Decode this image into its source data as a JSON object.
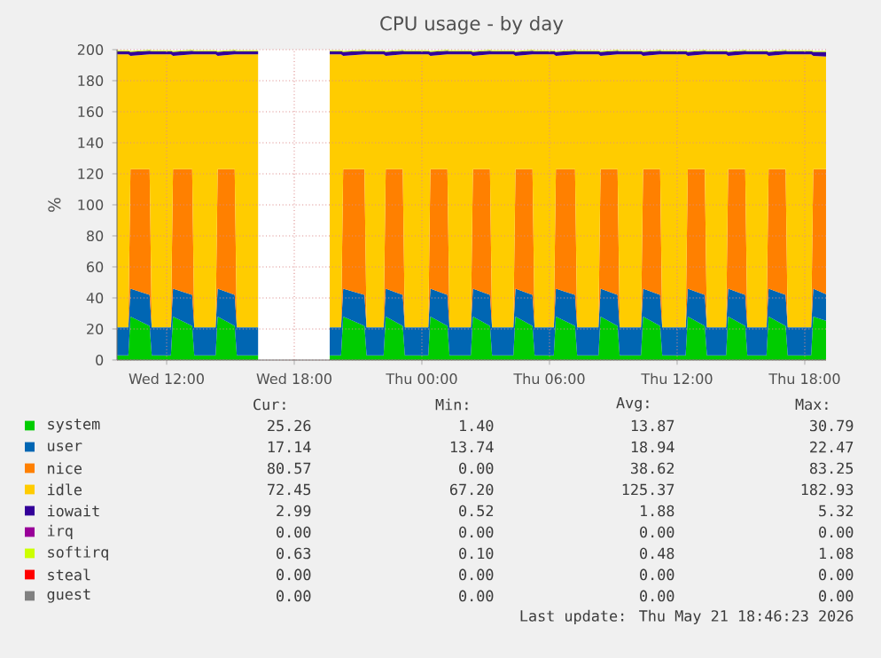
{
  "chart_data": {
    "type": "area",
    "stacked": true,
    "title": "CPU usage - by day",
    "ylabel": "%",
    "x": [
      "2026-05-20T09:40",
      "2026-05-20T10:12",
      "2026-05-20T10:18",
      "2026-05-20T11:12",
      "2026-05-20T11:18",
      "2026-05-20T12:12",
      "2026-05-20T12:18",
      "2026-05-20T13:12",
      "2026-05-20T13:18",
      "2026-05-20T14:18",
      "2026-05-20T14:24",
      "2026-05-20T15:12",
      "2026-05-20T15:18",
      "2026-05-20T16:18",
      "2026-05-20T18:00",
      "2026-05-20T19:40",
      "2026-05-20T20:12",
      "2026-05-20T20:18",
      "2026-05-20T21:18",
      "2026-05-20T21:24",
      "2026-05-20T22:12",
      "2026-05-20T22:18",
      "2026-05-20T23:06",
      "2026-05-20T23:12",
      "2026-05-21T00:18",
      "2026-05-21T00:24",
      "2026-05-21T01:12",
      "2026-05-21T01:18",
      "2026-05-21T02:18",
      "2026-05-21T02:24",
      "2026-05-21T03:12",
      "2026-05-21T03:18",
      "2026-05-21T04:18",
      "2026-05-21T04:24",
      "2026-05-21T05:12",
      "2026-05-21T05:18",
      "2026-05-21T06:12",
      "2026-05-21T06:18",
      "2026-05-21T07:12",
      "2026-05-21T07:18",
      "2026-05-21T08:18",
      "2026-05-21T08:24",
      "2026-05-21T09:12",
      "2026-05-21T09:18",
      "2026-05-21T10:18",
      "2026-05-21T10:24",
      "2026-05-21T11:12",
      "2026-05-21T11:18",
      "2026-05-21T12:24",
      "2026-05-21T12:30",
      "2026-05-21T13:18",
      "2026-05-21T13:24",
      "2026-05-21T14:18",
      "2026-05-21T14:24",
      "2026-05-21T15:12",
      "2026-05-21T15:18",
      "2026-05-21T16:12",
      "2026-05-21T16:18",
      "2026-05-21T17:06",
      "2026-05-21T17:12",
      "2026-05-21T18:18",
      "2026-05-21T18:24",
      "2026-05-21T19:00"
    ],
    "series": [
      {
        "name": "system",
        "color": "#00cc00",
        "values": [
          3,
          3,
          28,
          22,
          3,
          3,
          28,
          22,
          3,
          3,
          28,
          22,
          3,
          3,
          null,
          3,
          3,
          28,
          22,
          3,
          3,
          28,
          22,
          3,
          3,
          28,
          22,
          3,
          3,
          28,
          22,
          3,
          3,
          28,
          22,
          3,
          3,
          28,
          22,
          3,
          3,
          28,
          22,
          3,
          3,
          28,
          22,
          3,
          3,
          28,
          22,
          3,
          3,
          28,
          22,
          3,
          3,
          28,
          22,
          3,
          3,
          28,
          25.3
        ]
      },
      {
        "name": "user",
        "color": "#0066b3",
        "values": [
          18,
          18,
          18,
          20,
          18,
          18,
          18,
          20,
          18,
          18,
          18,
          20,
          18,
          18,
          null,
          18,
          18,
          18,
          20,
          18,
          18,
          18,
          20,
          18,
          18,
          18,
          20,
          18,
          18,
          18,
          20,
          18,
          18,
          18,
          20,
          18,
          18,
          18,
          20,
          18,
          18,
          18,
          20,
          18,
          18,
          18,
          20,
          18,
          18,
          18,
          20,
          18,
          18,
          18,
          20,
          18,
          18,
          18,
          20,
          18,
          18,
          18,
          17.1
        ]
      },
      {
        "name": "nice",
        "color": "#ff8000",
        "values": [
          0,
          0,
          77,
          81,
          0,
          0,
          77,
          81,
          0,
          0,
          77,
          81,
          0,
          0,
          null,
          0,
          0,
          77,
          81,
          0,
          0,
          77,
          81,
          0,
          0,
          77,
          81,
          0,
          0,
          77,
          81,
          0,
          0,
          77,
          81,
          0,
          0,
          77,
          81,
          0,
          0,
          77,
          81,
          0,
          0,
          77,
          81,
          0,
          0,
          77,
          81,
          0,
          0,
          77,
          81,
          0,
          0,
          77,
          81,
          0,
          0,
          77,
          80.6
        ]
      },
      {
        "name": "idle",
        "color": "#ffcc00",
        "values": [
          176,
          176,
          73,
          74,
          176,
          176,
          73,
          74,
          176,
          176,
          73,
          74,
          176,
          176,
          null,
          176,
          176,
          73,
          74,
          176,
          176,
          73,
          74,
          176,
          176,
          73,
          74,
          176,
          176,
          73,
          74,
          176,
          176,
          73,
          74,
          176,
          176,
          73,
          74,
          176,
          176,
          73,
          74,
          176,
          176,
          73,
          74,
          176,
          176,
          73,
          74,
          176,
          176,
          73,
          74,
          176,
          176,
          73,
          74,
          176,
          176,
          73,
          72.5
        ]
      },
      {
        "name": "iowait",
        "color": "#330099",
        "values": [
          2,
          2,
          2.5,
          2.3,
          2,
          2,
          2.5,
          2.3,
          2,
          2,
          2.5,
          2.3,
          2,
          2,
          null,
          2,
          2,
          2.5,
          2.3,
          2,
          2,
          2.5,
          2.3,
          2,
          2,
          2.5,
          2.3,
          2,
          2,
          2.5,
          2.3,
          2,
          2,
          2.5,
          2.3,
          2,
          2,
          2.5,
          2.3,
          2,
          2,
          2.5,
          2.3,
          2,
          2,
          2.5,
          2.3,
          2,
          2,
          2.5,
          2.3,
          2,
          2,
          2.5,
          2.3,
          2,
          2,
          2.5,
          2.3,
          2,
          2,
          2.5,
          3
        ]
      },
      {
        "name": "irq",
        "color": "#990099",
        "values": [
          null,
          null,
          null,
          null,
          null,
          null,
          null,
          null,
          null,
          null,
          null,
          null,
          null,
          null,
          null,
          null,
          null,
          null,
          null,
          null,
          null,
          null,
          null,
          null,
          null,
          null,
          null,
          null,
          null,
          null,
          null,
          null,
          null,
          null,
          null,
          null,
          null,
          null,
          null,
          null,
          null,
          null,
          null,
          null,
          null,
          null,
          null,
          null,
          null,
          null,
          null,
          null,
          null,
          null,
          null,
          null,
          null,
          null,
          null,
          null,
          null,
          null,
          null
        ]
      },
      {
        "name": "softirq",
        "color": "#ccff00",
        "values": [
          0.5,
          0.5,
          0.6,
          0.6,
          0.5,
          0.5,
          0.6,
          0.6,
          0.5,
          0.5,
          0.6,
          0.6,
          0.5,
          0.5,
          null,
          0.5,
          0.5,
          0.6,
          0.6,
          0.5,
          0.5,
          0.6,
          0.6,
          0.5,
          0.5,
          0.6,
          0.6,
          0.5,
          0.5,
          0.6,
          0.6,
          0.5,
          0.5,
          0.6,
          0.6,
          0.5,
          0.5,
          0.6,
          0.6,
          0.5,
          0.5,
          0.6,
          0.6,
          0.5,
          0.5,
          0.6,
          0.6,
          0.5,
          0.5,
          0.6,
          0.6,
          0.5,
          0.5,
          0.6,
          0.6,
          0.5,
          0.5,
          0.6,
          0.6,
          0.5,
          0.5,
          0.6,
          0.6
        ]
      },
      {
        "name": "steal",
        "color": "#ff0000",
        "values": [
          null,
          null,
          null,
          null,
          null,
          null,
          null,
          null,
          null,
          null,
          null,
          null,
          null,
          null,
          null,
          null,
          null,
          null,
          null,
          null,
          null,
          null,
          null,
          null,
          null,
          null,
          null,
          null,
          null,
          null,
          null,
          null,
          null,
          null,
          null,
          null,
          null,
          null,
          null,
          null,
          null,
          null,
          null,
          null,
          null,
          null,
          null,
          null,
          null,
          null,
          null,
          null,
          null,
          null,
          null,
          null,
          null,
          null,
          null,
          null,
          null,
          null,
          null
        ]
      },
      {
        "name": "guest",
        "color": "#808080",
        "values": [
          null,
          null,
          null,
          null,
          null,
          null,
          null,
          null,
          null,
          null,
          null,
          null,
          null,
          null,
          null,
          null,
          null,
          null,
          null,
          null,
          null,
          null,
          null,
          null,
          null,
          null,
          null,
          null,
          null,
          null,
          null,
          null,
          null,
          null,
          null,
          null,
          null,
          null,
          null,
          null,
          null,
          null,
          null,
          null,
          null,
          null,
          null,
          null,
          null,
          null,
          null,
          null,
          null,
          null,
          null,
          null,
          null,
          null,
          null,
          null,
          null,
          null,
          null
        ]
      }
    ],
    "xlim": [
      "2026-05-20T09:40",
      "2026-05-21T19:00"
    ],
    "xticks": [
      {
        "value": "2026-05-20T12:00",
        "label": "Wed 12:00"
      },
      {
        "value": "2026-05-20T18:00",
        "label": "Wed 18:00"
      },
      {
        "value": "2026-05-21T00:00",
        "label": "Thu 00:00"
      },
      {
        "value": "2026-05-21T06:00",
        "label": "Thu 06:00"
      },
      {
        "value": "2026-05-21T12:00",
        "label": "Thu 12:00"
      },
      {
        "value": "2026-05-21T18:00",
        "label": "Thu 18:00"
      }
    ],
    "ylim": [
      0,
      200
    ],
    "yticks": [
      0,
      20,
      40,
      60,
      80,
      100,
      120,
      140,
      160,
      180,
      200
    ],
    "grid": true,
    "legend": "bottom",
    "annotations": [
      "Cur:",
      "Min:",
      "Avg:",
      "Max:",
      "25.26",
      "1.40",
      "13.87",
      "30.79",
      "17.14",
      "13.74",
      "18.94",
      "22.47",
      "80.57",
      "0.00",
      "38.62",
      "83.25",
      "72.45",
      "67.20",
      "125.37",
      "182.93",
      "2.99",
      "0.52",
      "1.88",
      "5.32",
      "0.00",
      "0.00",
      "0.00",
      "0.00",
      "0.63",
      "0.10",
      "0.48",
      "1.08",
      "0.00",
      "0.00",
      "0.00",
      "0.00",
      "0.00",
      "0.00",
      "0.00",
      "0.00",
      "Last update: Thu May 21 18:46:23 2026"
    ]
  }
}
